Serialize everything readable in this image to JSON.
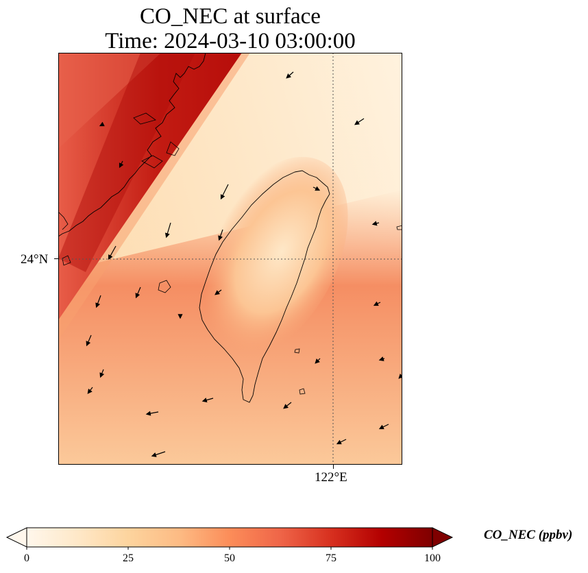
{
  "title_line1": "CO_NEC at surface",
  "title_line2": "Time: 2024-03-10 03:00:00",
  "axes": {
    "lat_label": "24°N",
    "lon_label": "122°E"
  },
  "colorbar": {
    "label": "CO_NEC (ppbv)",
    "ticks": [
      "0",
      "25",
      "50",
      "75",
      "100"
    ],
    "colormap": "OrRd",
    "colors": [
      "#fff7ec",
      "#fdd49e",
      "#fc8d59",
      "#d7301f",
      "#7f0000"
    ],
    "extend": "both"
  },
  "layers": [
    "coastline",
    "wind-vectors",
    "lat-lon-gridlines"
  ]
}
